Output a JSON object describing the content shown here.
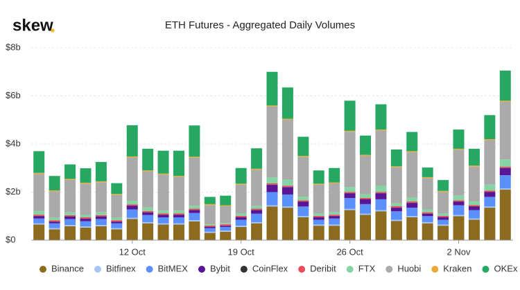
{
  "brand": "skew",
  "chart_data": {
    "type": "stacked_bar",
    "title": "ETH Futures - Aggregated Daily Volumes",
    "categories": [
      null,
      null,
      null,
      null,
      null,
      null,
      "12 Oct",
      null,
      null,
      null,
      null,
      null,
      null,
      "19 Oct",
      null,
      null,
      null,
      null,
      null,
      null,
      "26 Oct",
      null,
      null,
      null,
      null,
      null,
      null,
      "2 Nov",
      null,
      null,
      null
    ],
    "ylim": [
      0,
      8
    ],
    "yticks": [
      {
        "value": 0,
        "label": "$0"
      },
      {
        "value": 2,
        "label": "$2b"
      },
      {
        "value": 4,
        "label": "$4b"
      },
      {
        "value": 6,
        "label": "$6b"
      },
      {
        "value": 8,
        "label": "$8b"
      }
    ],
    "grid": true,
    "legend": "bottom",
    "series": [
      {
        "name": "Binance",
        "color": "#8c6a1e",
        "values": [
          0.65,
          0.45,
          0.58,
          0.52,
          0.58,
          0.45,
          0.88,
          0.7,
          0.65,
          0.65,
          0.78,
          0.3,
          0.35,
          0.55,
          0.7,
          1.4,
          1.35,
          0.95,
          0.6,
          0.6,
          1.25,
          1.05,
          1.2,
          0.8,
          0.95,
          0.7,
          0.6,
          1.0,
          0.85,
          1.35,
          2.1
        ]
      },
      {
        "name": "Bitfinex",
        "color": "#a7c7f2",
        "values": [
          0.05,
          0.05,
          0.05,
          0.05,
          0.05,
          0.05,
          0.05,
          0.05,
          0.05,
          0.05,
          0.05,
          0.05,
          0.05,
          0.05,
          0.05,
          0.05,
          0.05,
          0.05,
          0.05,
          0.05,
          0.05,
          0.05,
          0.05,
          0.05,
          0.05,
          0.05,
          0.05,
          0.05,
          0.05,
          0.05,
          0.05
        ]
      },
      {
        "name": "BitMEX",
        "color": "#5b8ff9",
        "values": [
          0.2,
          0.2,
          0.25,
          0.22,
          0.25,
          0.2,
          0.35,
          0.3,
          0.25,
          0.25,
          0.3,
          0.15,
          0.15,
          0.25,
          0.35,
          0.55,
          0.5,
          0.4,
          0.2,
          0.25,
          0.45,
          0.4,
          0.45,
          0.35,
          0.35,
          0.25,
          0.2,
          0.4,
          0.35,
          0.4,
          0.55
        ]
      },
      {
        "name": "Bybit",
        "color": "#5a1496",
        "values": [
          0.1,
          0.07,
          0.1,
          0.1,
          0.1,
          0.07,
          0.15,
          0.1,
          0.1,
          0.1,
          0.12,
          0.05,
          0.05,
          0.1,
          0.15,
          0.3,
          0.3,
          0.2,
          0.1,
          0.1,
          0.2,
          0.2,
          0.25,
          0.15,
          0.2,
          0.1,
          0.1,
          0.15,
          0.15,
          0.2,
          0.3
        ]
      },
      {
        "name": "CoinFlex",
        "color": "#333333",
        "values": [
          0.01,
          0.01,
          0.01,
          0.01,
          0.01,
          0.01,
          0.01,
          0.01,
          0.01,
          0.01,
          0.01,
          0.01,
          0.01,
          0.01,
          0.01,
          0.01,
          0.01,
          0.01,
          0.01,
          0.01,
          0.01,
          0.01,
          0.01,
          0.01,
          0.01,
          0.01,
          0.01,
          0.01,
          0.01,
          0.01,
          0.01
        ]
      },
      {
        "name": "Deribit",
        "color": "#eb4d5c",
        "values": [
          0.05,
          0.05,
          0.05,
          0.05,
          0.05,
          0.05,
          0.05,
          0.05,
          0.05,
          0.05,
          0.05,
          0.05,
          0.05,
          0.05,
          0.05,
          0.05,
          0.05,
          0.05,
          0.05,
          0.05,
          0.05,
          0.05,
          0.05,
          0.05,
          0.05,
          0.05,
          0.05,
          0.05,
          0.05,
          0.05,
          0.05
        ]
      },
      {
        "name": "FTX",
        "color": "#86d3a4",
        "values": [
          0.15,
          0.1,
          0.12,
          0.1,
          0.12,
          0.1,
          0.15,
          0.15,
          0.12,
          0.12,
          0.12,
          0.05,
          0.05,
          0.1,
          0.12,
          0.25,
          0.25,
          0.15,
          0.1,
          0.1,
          0.2,
          0.15,
          0.25,
          0.12,
          0.15,
          0.12,
          0.1,
          0.2,
          0.15,
          0.25,
          0.3
        ]
      },
      {
        "name": "Huobi",
        "color": "#aaaaaa",
        "values": [
          1.55,
          1.1,
          1.35,
          1.3,
          1.25,
          0.95,
          1.8,
          1.5,
          1.5,
          1.4,
          2.0,
          0.8,
          0.7,
          1.2,
          1.5,
          2.95,
          2.5,
          1.65,
          1.2,
          1.2,
          2.3,
          1.6,
          2.3,
          1.5,
          1.9,
          1.3,
          0.9,
          1.9,
          1.45,
          1.85,
          2.4
        ]
      },
      {
        "name": "Kraken",
        "color": "#e9a93a",
        "values": [
          0.04,
          0.04,
          0.04,
          0.04,
          0.04,
          0.04,
          0.04,
          0.04,
          0.04,
          0.04,
          0.04,
          0.04,
          0.04,
          0.04,
          0.04,
          0.04,
          0.04,
          0.04,
          0.04,
          0.04,
          0.04,
          0.04,
          0.04,
          0.04,
          0.04,
          0.04,
          0.04,
          0.04,
          0.04,
          0.04,
          0.04
        ]
      },
      {
        "name": "OKEx",
        "color": "#27a862",
        "values": [
          0.9,
          0.6,
          0.6,
          0.6,
          0.8,
          0.45,
          1.3,
          0.9,
          0.95,
          1.05,
          1.3,
          0.3,
          0.4,
          0.65,
          0.85,
          1.4,
          1.3,
          0.8,
          0.55,
          0.6,
          1.25,
          0.8,
          1.05,
          0.7,
          0.8,
          0.4,
          0.45,
          0.8,
          0.7,
          1.0,
          1.25
        ]
      }
    ]
  }
}
